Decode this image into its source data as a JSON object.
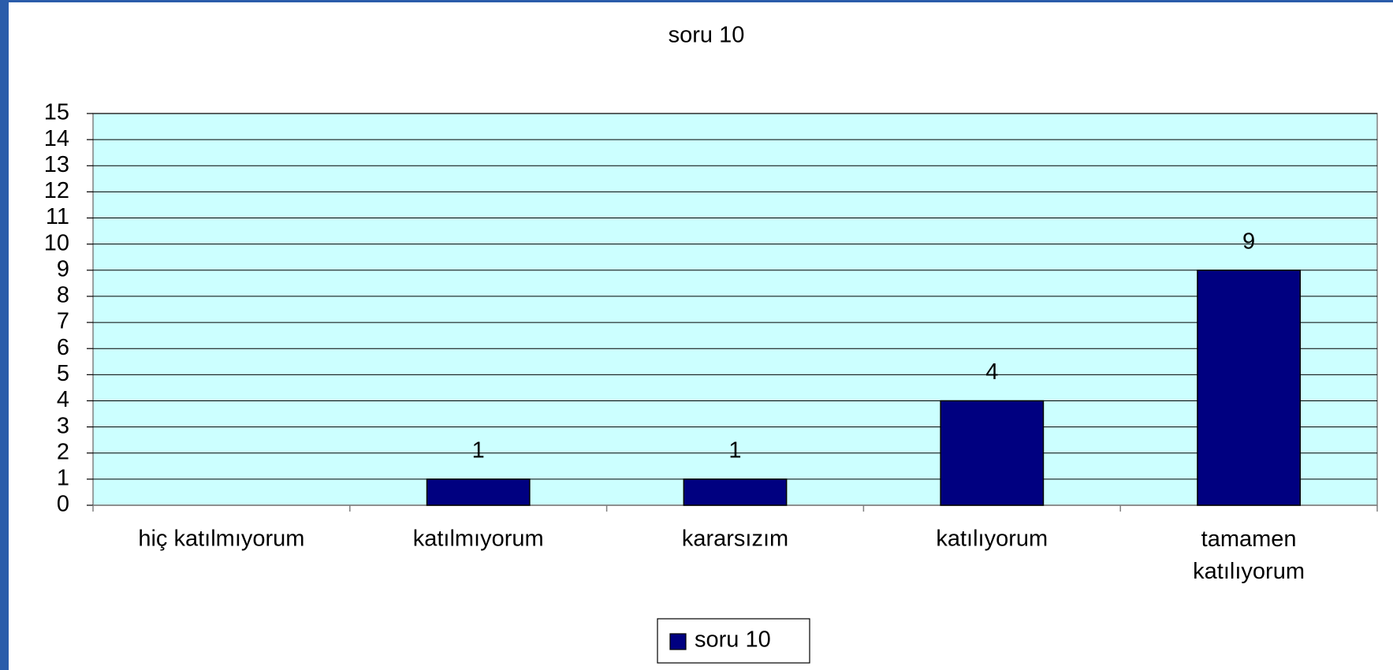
{
  "chart_data": {
    "type": "bar",
    "title": "soru 10",
    "categories": [
      "hiç katılmıyorum",
      "katılmıyorum",
      "kararsızım",
      "katılıyorum",
      "tamamen katılıyorum"
    ],
    "series": [
      {
        "name": "soru 10",
        "color": "#000080",
        "values": [
          0,
          1,
          1,
          4,
          9
        ],
        "value_labels": [
          null,
          "1",
          "1",
          "4",
          "9"
        ]
      }
    ],
    "ylim": [
      0,
      15
    ],
    "yticks": [
      0,
      1,
      2,
      3,
      4,
      5,
      6,
      7,
      8,
      9,
      10,
      11,
      12,
      13,
      14,
      15
    ],
    "grid": true,
    "legend": "bottom",
    "plot_background": "#ccffff"
  }
}
